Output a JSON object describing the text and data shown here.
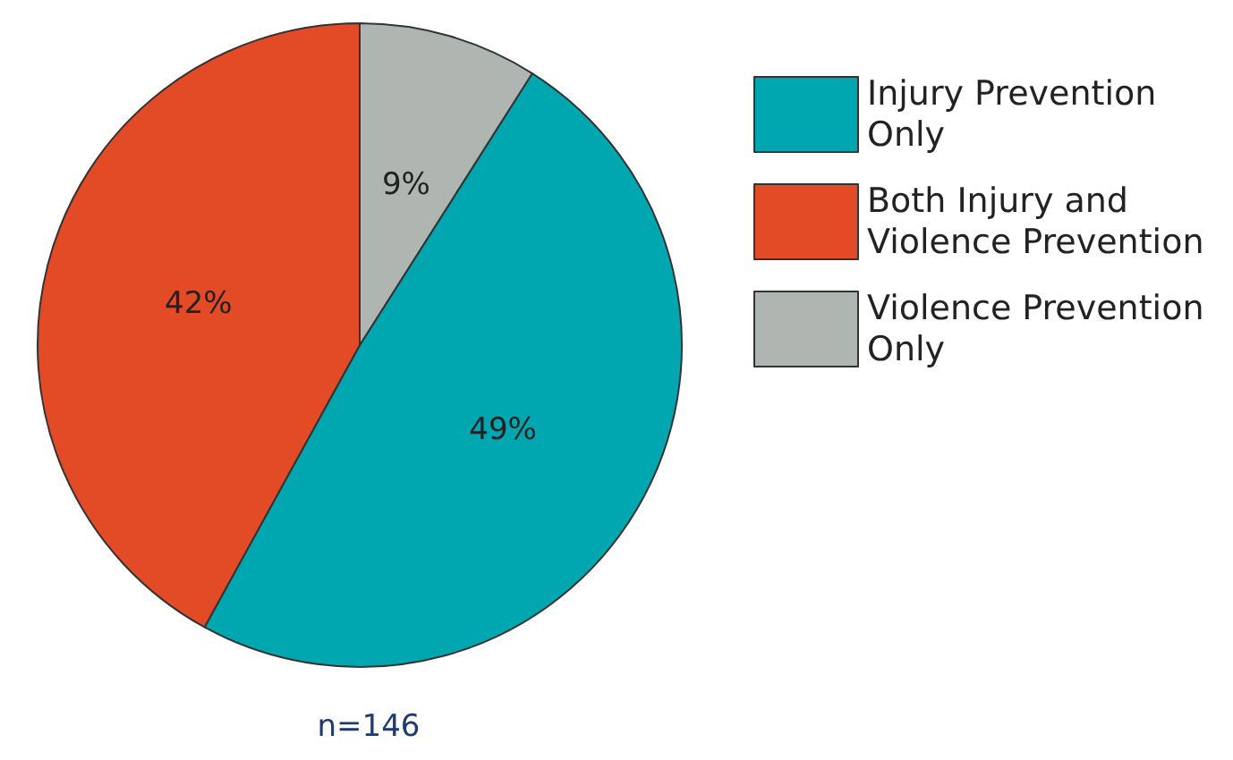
{
  "chart_data": {
    "type": "pie",
    "categories": [
      "Injury Prevention Only",
      "Both Injury and Violence Prevention",
      "Violence Prevention Only"
    ],
    "values": [
      49,
      42,
      9
    ],
    "colors": [
      "#00a6b0",
      "#e34a26",
      "#afb5b0"
    ],
    "value_labels": [
      "49%",
      "42%",
      "9%"
    ],
    "legend": "right",
    "annotations": [
      "n=146"
    ]
  }
}
